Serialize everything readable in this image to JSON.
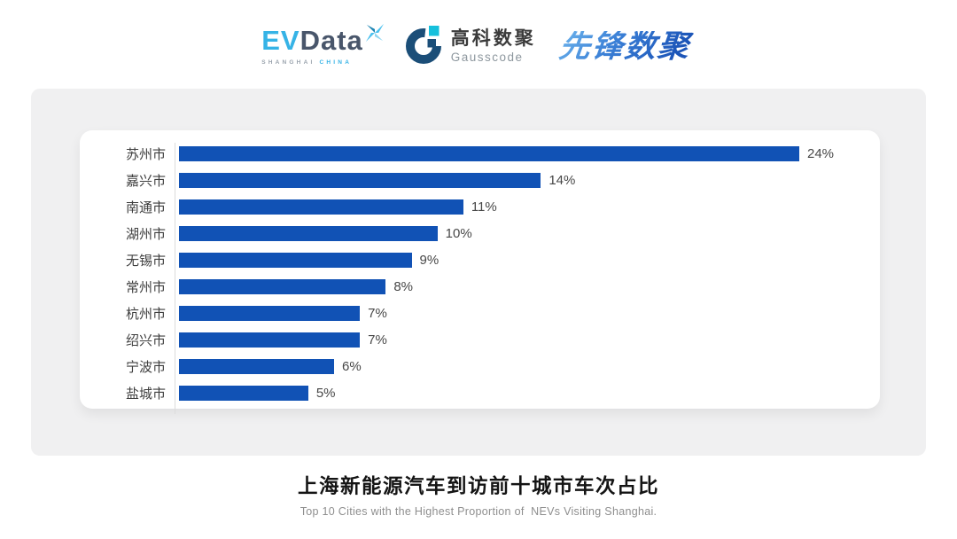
{
  "header": {
    "evdata": {
      "ev": "EV",
      "data": "Data",
      "sub_left": "SHANGHAI",
      "sub_right": "CHINA"
    },
    "gausscode": {
      "cn": "高科数聚",
      "en": "Gausscode"
    },
    "pioneer": {
      "text": "先锋数聚"
    }
  },
  "chart_data": {
    "type": "bar",
    "orientation": "horizontal",
    "categories": [
      "苏州市",
      "嘉兴市",
      "南通市",
      "湖州市",
      "无锡市",
      "常州市",
      "杭州市",
      "绍兴市",
      "宁波市",
      "盐城市"
    ],
    "values": [
      24,
      14,
      11,
      10,
      9,
      8,
      7,
      7,
      6,
      5
    ],
    "value_labels": [
      "24%",
      "14%",
      "11%",
      "10%",
      "9%",
      "8%",
      "7%",
      "7%",
      "6%",
      "5%"
    ],
    "xlim": [
      0,
      24
    ],
    "grid": false,
    "legend": "none",
    "bar_color": "#1152b5",
    "axis_line_color": "#dcdcdc",
    "title": "上海新能源汽车到访前十城市车次占比",
    "subtitle": "Top 10 Cities with the Highest Proportion of  NEVs Visiting Shanghai."
  },
  "footer": {
    "title": "上海新能源汽车到访前十城市车次占比",
    "subtitle": "Top 10 Cities with the Highest Proportion of  NEVs Visiting Shanghai."
  },
  "colors": {
    "panel_bg": "#f0f0f1",
    "card_bg": "#ffffff",
    "bar_blue": "#1152b5",
    "evdata_blue": "#36b3e6",
    "evdata_dark": "#49566b",
    "gausscode_navy": "#1b4e78",
    "gausscode_cyan": "#16c0dc"
  }
}
